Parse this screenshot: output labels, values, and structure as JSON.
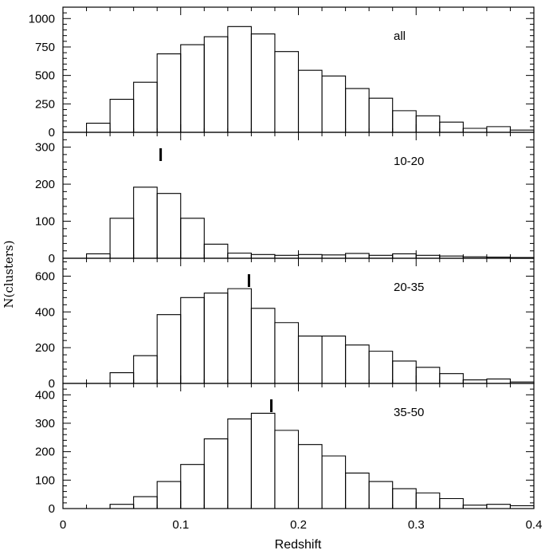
{
  "chart_data": {
    "type": "histogram",
    "xlabel": "Redshift",
    "ylabel": "N(clusters)",
    "xlim": [
      0,
      0.4
    ],
    "x_ticks": [
      0,
      0.1,
      0.2,
      0.3,
      0.4
    ],
    "x_tick_labels": [
      "0",
      "0.1",
      "0.2",
      "0.3",
      "0.4"
    ],
    "bin_edges": [
      0.0,
      0.02,
      0.04,
      0.06,
      0.08,
      0.1,
      0.12,
      0.14,
      0.16,
      0.18,
      0.2,
      0.22,
      0.24,
      0.26,
      0.28,
      0.3,
      0.32,
      0.34,
      0.36,
      0.38,
      0.4
    ],
    "grid": false,
    "panels": [
      {
        "label": "all",
        "ylim": [
          0,
          1100
        ],
        "y_ticks": [
          0,
          250,
          500,
          750,
          1000
        ],
        "y_tick_labels": [
          "0",
          "250",
          "500",
          "750",
          "1000"
        ],
        "counts": [
          0,
          80,
          290,
          440,
          690,
          770,
          840,
          930,
          865,
          710,
          545,
          495,
          385,
          300,
          190,
          145,
          90,
          35,
          50,
          20
        ],
        "marker": null
      },
      {
        "label": "10-20",
        "ylim": [
          0,
          340
        ],
        "y_ticks": [
          0,
          100,
          200,
          300
        ],
        "y_tick_labels": [
          "0",
          "100",
          "200",
          "300"
        ],
        "counts": [
          0,
          12,
          108,
          192,
          175,
          108,
          38,
          14,
          10,
          8,
          10,
          9,
          13,
          8,
          12,
          8,
          6,
          4,
          3,
          2
        ],
        "marker": 0.083
      },
      {
        "label": "20-35",
        "ylim": [
          0,
          700
        ],
        "y_ticks": [
          0,
          200,
          400,
          600
        ],
        "y_tick_labels": [
          "0",
          "200",
          "400",
          "600"
        ],
        "counts": [
          0,
          0,
          60,
          155,
          385,
          480,
          505,
          530,
          420,
          340,
          265,
          265,
          215,
          180,
          125,
          90,
          55,
          20,
          25,
          8
        ],
        "marker": 0.158
      },
      {
        "label": "35-50",
        "ylim": [
          0,
          440
        ],
        "y_ticks": [
          0,
          100,
          200,
          300,
          400
        ],
        "y_tick_labels": [
          "0",
          "100",
          "200",
          "300",
          "400"
        ],
        "counts": [
          0,
          0,
          15,
          42,
          95,
          155,
          245,
          315,
          335,
          275,
          225,
          185,
          125,
          95,
          70,
          55,
          35,
          12,
          15,
          10
        ],
        "marker": 0.177
      }
    ]
  }
}
